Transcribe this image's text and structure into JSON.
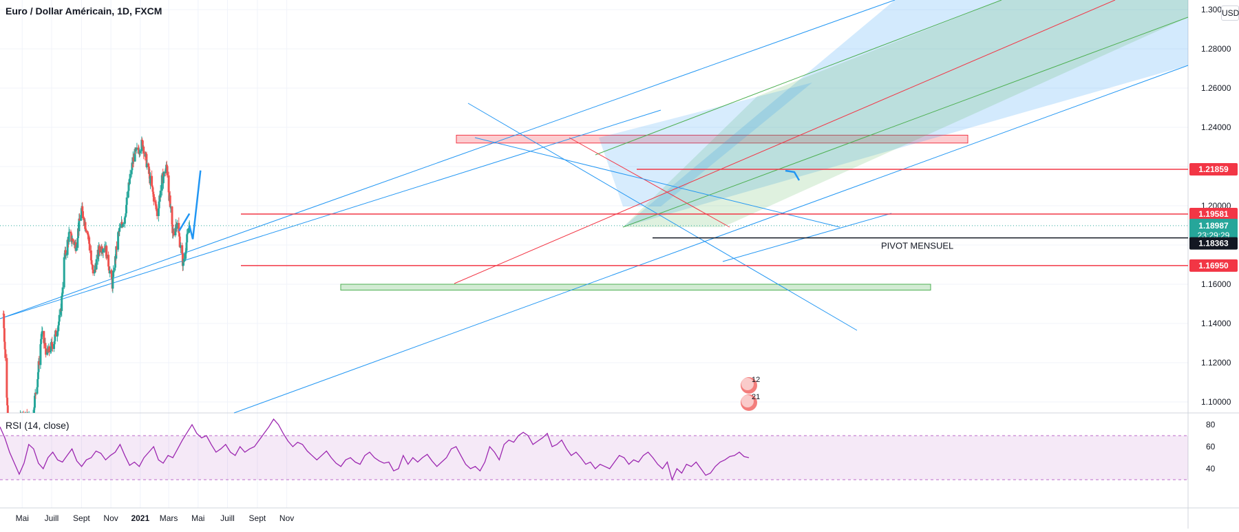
{
  "header": {
    "title": "Euro / Dollar Américain, 1D, FXCM",
    "currency_button": "USD"
  },
  "rsi": {
    "label": "RSI (14, close)"
  },
  "annotations": {
    "pivot_label": "PIVOT MENSUEL",
    "event1": "12",
    "event2": "21"
  },
  "price_badges": {
    "resistance_1": "1.21859",
    "resistance_2": "1.19581",
    "last_price": "1.18987",
    "countdown": "23:29:29",
    "pivot": "1.18363",
    "support": "1.16950"
  },
  "colors": {
    "bull": "#26a69a",
    "bear": "#ef5350",
    "fib_line": "#2196f3",
    "level": "#f23645",
    "rsi_line": "#9c27b0",
    "rsi_band": "#e1bee7"
  },
  "chart_data": [
    {
      "type": "candlestick",
      "title": "Euro / Dollar Américain, 1D, FXCM",
      "x_tick_labels": [
        "Mai",
        "Juill",
        "Sept",
        "Nov",
        "2021",
        "Mars",
        "Mai",
        "Juill",
        "Sept",
        "Nov"
      ],
      "y_tick_labels": [
        "1.10000",
        "1.12000",
        "1.14000",
        "1.16000",
        "1.18000",
        "1.20000",
        "1.22000",
        "1.24000",
        "1.26000",
        "1.28000",
        "1.30000"
      ],
      "ylim": [
        1.095,
        1.3
      ],
      "price_path": [
        [
          "2020-03-23",
          1.145
        ],
        [
          "2020-04-01",
          1.092
        ],
        [
          "2020-04-20",
          1.085
        ],
        [
          "2020-05-01",
          1.093
        ],
        [
          "2020-05-20",
          1.09
        ],
        [
          "2020-06-01",
          1.11
        ],
        [
          "2020-06-10",
          1.135
        ],
        [
          "2020-06-22",
          1.124
        ],
        [
          "2020-07-06",
          1.131
        ],
        [
          "2020-07-20",
          1.145
        ],
        [
          "2020-07-27",
          1.172
        ],
        [
          "2020-08-06",
          1.185
        ],
        [
          "2020-08-20",
          1.18
        ],
        [
          "2020-09-01",
          1.198
        ],
        [
          "2020-09-15",
          1.185
        ],
        [
          "2020-09-25",
          1.164
        ],
        [
          "2020-10-08",
          1.178
        ],
        [
          "2020-10-20",
          1.18
        ],
        [
          "2020-11-04",
          1.16
        ],
        [
          "2020-11-16",
          1.185
        ],
        [
          "2020-11-30",
          1.195
        ],
        [
          "2020-12-10",
          1.213
        ],
        [
          "2020-12-18",
          1.225
        ],
        [
          "2021-01-06",
          1.232
        ],
        [
          "2021-01-20",
          1.215
        ],
        [
          "2021-02-05",
          1.196
        ],
        [
          "2021-02-15",
          1.213
        ],
        [
          "2021-02-25",
          1.22
        ],
        [
          "2021-03-09",
          1.185
        ],
        [
          "2021-03-18",
          1.192
        ],
        [
          "2021-03-31",
          1.17
        ],
        [
          "2021-04-06",
          1.18
        ],
        [
          "2021-04-13",
          1.19
        ]
      ],
      "levels": [
        {
          "label": "1.21859",
          "value": 1.21859
        },
        {
          "label": "1.19581",
          "value": 1.19581
        },
        {
          "label": "PIVOT MENSUEL",
          "value": 1.18363
        },
        {
          "label": "1.16950",
          "value": 1.1695
        }
      ],
      "last_price": 1.18987,
      "zones": [
        {
          "kind": "resistance",
          "from": 1.232,
          "to": 1.236
        },
        {
          "kind": "support",
          "from": 1.157,
          "to": 1.16
        }
      ],
      "projection": [
        [
          "2021-04-13",
          1.19
        ],
        [
          "2021-04-20",
          1.183
        ],
        [
          "2021-05-06",
          1.218
        ]
      ]
    },
    {
      "type": "line",
      "title": "RSI (14, close)",
      "y_tick_labels": [
        "40",
        "60",
        "80"
      ],
      "ylim": [
        28,
        88
      ],
      "band": [
        30,
        70
      ],
      "values": [
        78,
        68,
        55,
        45,
        35,
        45,
        62,
        58,
        45,
        40,
        50,
        55,
        48,
        46,
        52,
        58,
        47,
        42,
        48,
        50,
        56,
        54,
        48,
        52,
        55,
        62,
        52,
        43,
        46,
        42,
        50,
        55,
        60,
        48,
        45,
        52,
        50,
        58,
        66,
        73,
        80,
        72,
        68,
        70,
        62,
        55,
        58,
        62,
        55,
        52,
        60,
        55,
        58,
        60,
        66,
        72,
        78,
        85,
        80,
        72,
        65,
        60,
        64,
        62,
        56,
        52,
        48,
        52,
        56,
        50,
        45,
        42,
        48,
        50,
        46,
        44,
        52,
        55,
        50,
        47,
        45,
        46,
        38,
        40,
        52,
        44,
        50,
        46,
        50,
        53,
        47,
        42,
        46,
        50,
        58,
        60,
        52,
        44,
        40,
        42,
        38,
        46,
        60,
        55,
        48,
        62,
        66,
        64,
        70,
        73,
        70,
        62,
        65,
        68,
        72,
        60,
        62,
        66,
        58,
        52,
        55,
        50,
        44,
        46,
        40,
        44,
        42,
        40,
        46,
        52,
        50,
        44,
        48,
        46,
        52,
        55,
        50,
        44,
        40,
        46,
        30,
        40,
        36,
        44,
        42,
        46,
        40,
        34,
        36,
        42,
        46,
        48,
        51,
        52,
        55,
        51,
        50
      ]
    }
  ]
}
